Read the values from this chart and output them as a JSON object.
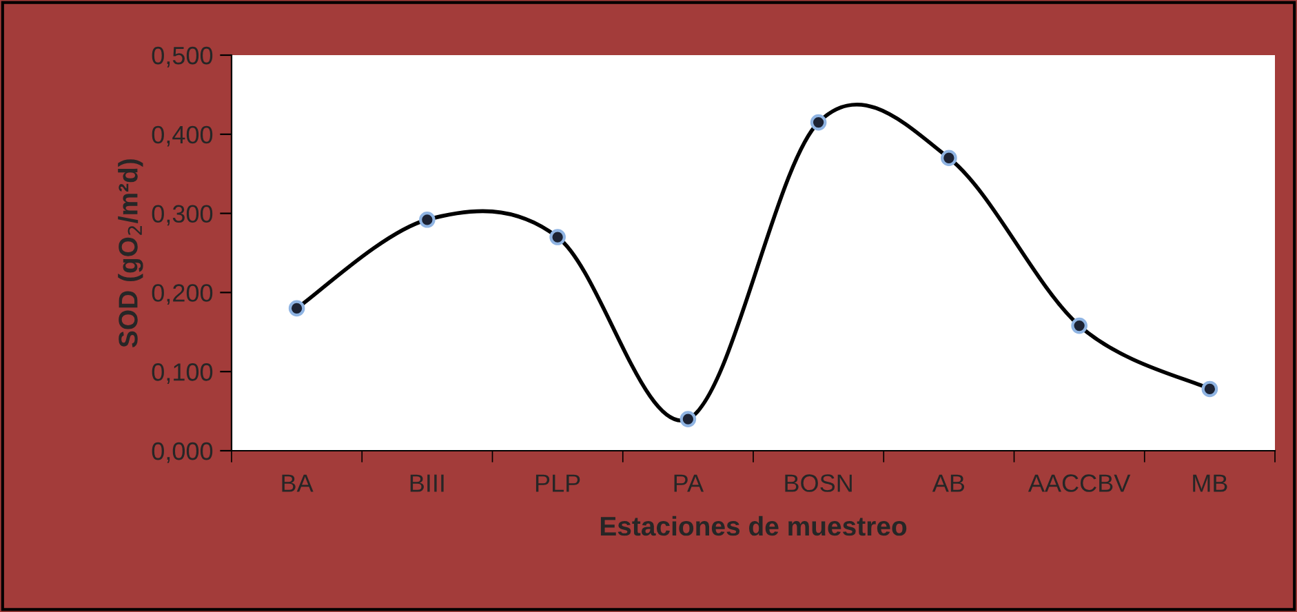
{
  "chart_data": {
    "type": "line",
    "xlabel": "Estaciones de muestreo",
    "ylabel": "SOD (gO$_{2}$/m²d)",
    "categories": [
      "BA",
      "BIII",
      "PLP",
      "PA",
      "BOSN",
      "AB",
      "AACCBV",
      "MB"
    ],
    "series": [
      {
        "color": "#000000",
        "values": [
          0.18,
          0.292,
          0.27,
          0.04,
          0.415,
          0.37,
          0.158,
          0.078
        ]
      }
    ],
    "ylim": [
      0,
      0.5
    ],
    "yticks": [
      {
        "value": 0,
        "label": "0,000"
      },
      {
        "value": 0.1,
        "label": "0,100"
      },
      {
        "value": 0.2,
        "label": "0,200"
      },
      {
        "value": 0.3,
        "label": "0,300"
      },
      {
        "value": 0.4,
        "label": "0,400"
      },
      {
        "value": 0.5,
        "label": "0,500"
      }
    ],
    "marker": "circle",
    "grid": false,
    "legend": false
  }
}
